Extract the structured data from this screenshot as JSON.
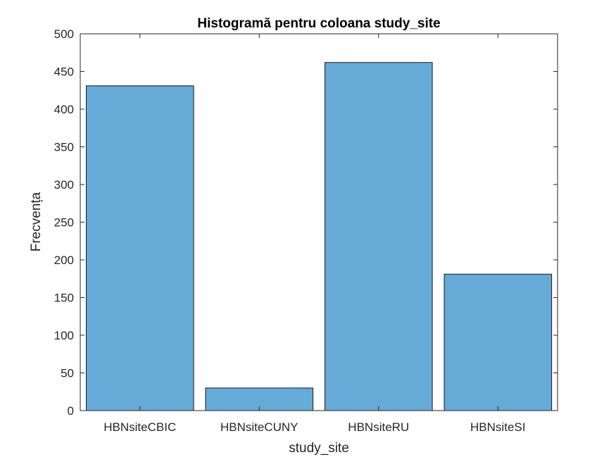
{
  "chart_data": {
    "type": "bar",
    "title": "Histogramă pentru coloana study_site",
    "xlabel": "study_site",
    "ylabel": "Frecvența",
    "categories": [
      "HBNsiteCBIC",
      "HBNsiteCUNY",
      "HBNsiteRU",
      "HBNsiteSI"
    ],
    "values": [
      431,
      30,
      462,
      181
    ],
    "ylim": [
      0,
      500
    ],
    "yticks": [
      0,
      50,
      100,
      150,
      200,
      250,
      300,
      350,
      400,
      450,
      500
    ],
    "bar_color": "#66aad7",
    "grid": false,
    "legend": "none"
  }
}
